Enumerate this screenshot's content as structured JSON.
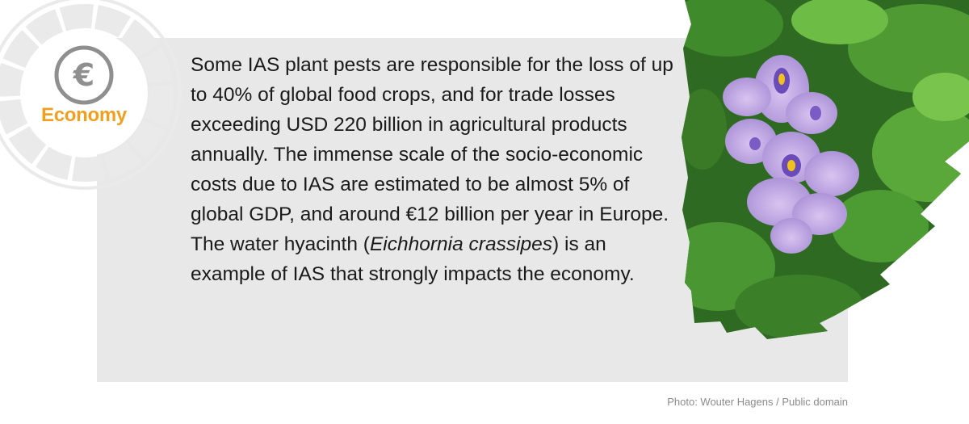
{
  "badge": {
    "label": "Economy",
    "icon": "euro-icon",
    "symbol": "€",
    "accent_color": "#f0a01e"
  },
  "content": {
    "paragraph1": "Some IAS plant pests are responsible for the loss of up to 40% of global food crops, and for trade losses exceeding USD 220 billion in agricultural products annually. The immense scale of the socio-economic costs due to IAS are estimated to be almost 5% of global GDP, and around €12 billion per year in Europe.",
    "paragraph2_before": "The water hyacinth (",
    "species_name": "Eichhornia crassipes",
    "paragraph2_after": ") is an example of IAS that strongly impacts the economy."
  },
  "photo": {
    "subject": "water-hyacinth-flower",
    "credit": "Photo: Wouter Hagens / Public domain"
  }
}
